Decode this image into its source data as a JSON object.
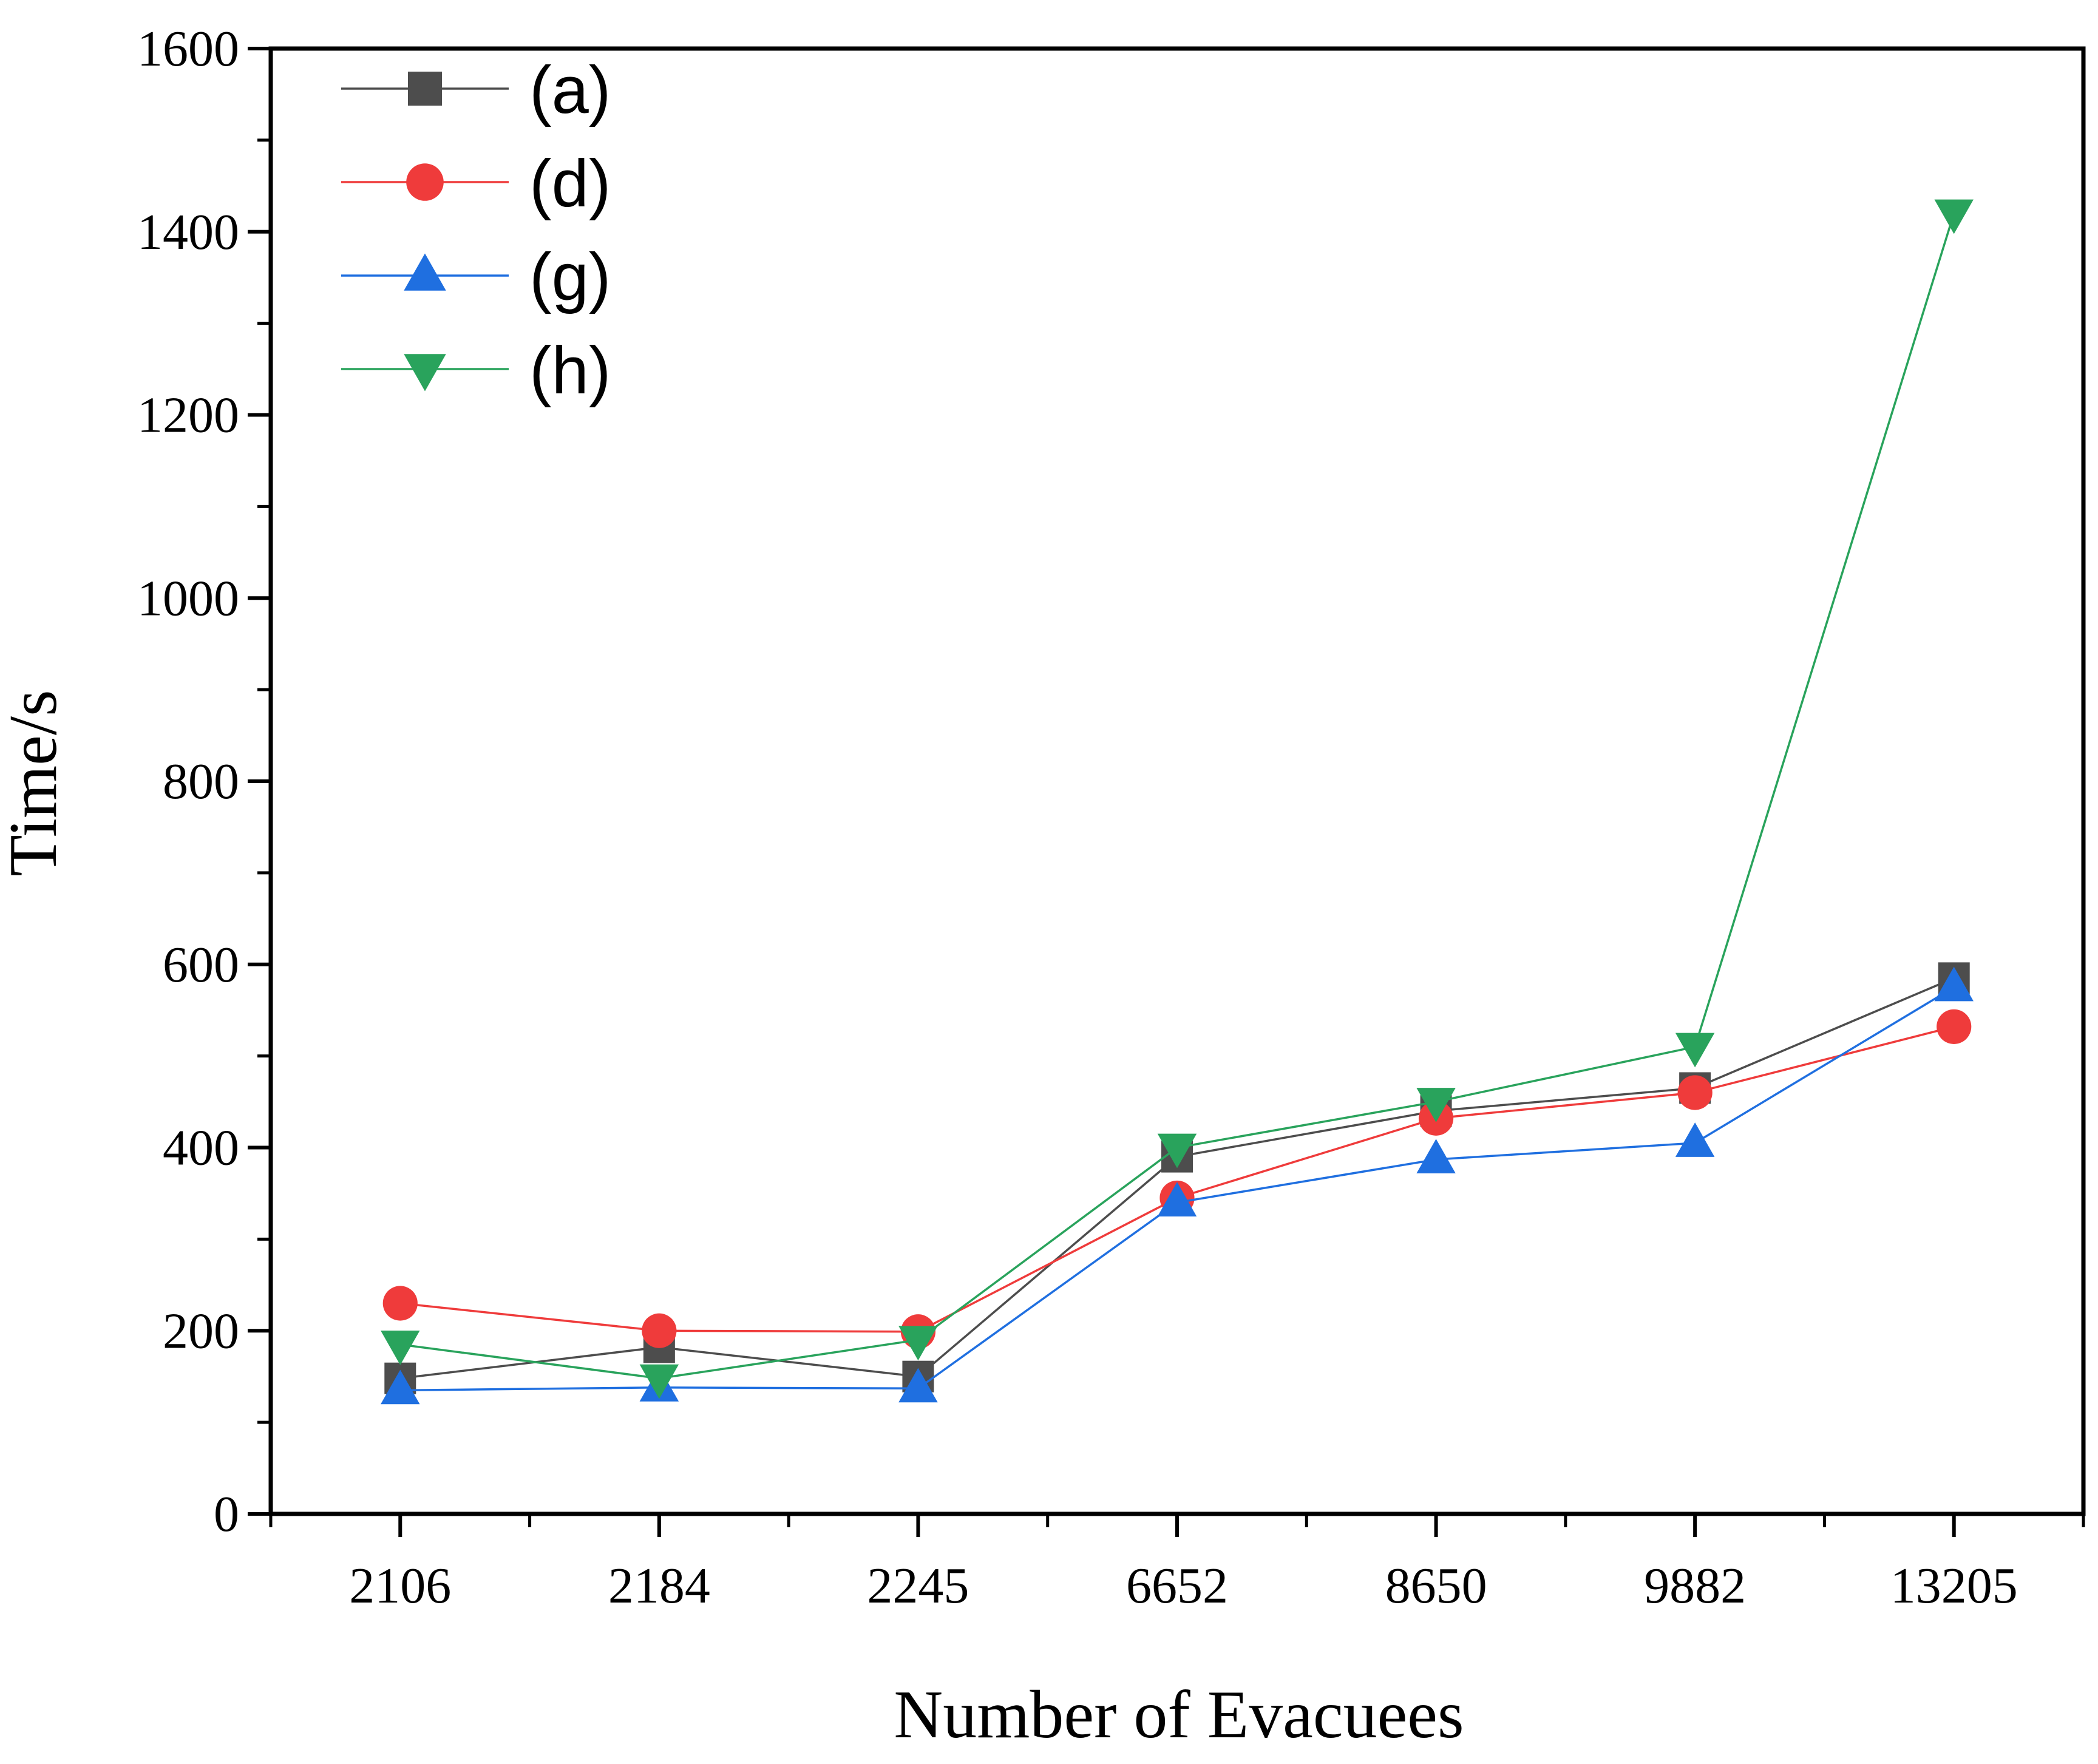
{
  "chart_data": {
    "type": "line",
    "title": "",
    "xlabel": "Number of Evacuees",
    "ylabel": "Time/s",
    "categories": [
      "2106",
      "2184",
      "2245",
      "6652",
      "8650",
      "9882",
      "13205"
    ],
    "ylim": [
      0,
      1600
    ],
    "yticks": [
      0,
      200,
      400,
      600,
      800,
      1000,
      1200,
      1400,
      1600
    ],
    "grid": false,
    "legend_position": "top-left",
    "series": [
      {
        "name": "(a)",
        "color": "#4d4d4d",
        "marker": "square",
        "values": [
          148,
          182,
          150,
          390,
          440,
          465,
          585
        ]
      },
      {
        "name": "(d)",
        "color": "#ef3b3b",
        "marker": "circle",
        "values": [
          230,
          200,
          199,
          345,
          432,
          460,
          532
        ]
      },
      {
        "name": "(g)",
        "color": "#1f6fe0",
        "marker": "triangle-up",
        "values": [
          135,
          138,
          137,
          340,
          387,
          405,
          575
        ]
      },
      {
        "name": "(h)",
        "color": "#29a35c",
        "marker": "triangle-down",
        "values": [
          185,
          148,
          190,
          400,
          450,
          510,
          1420
        ]
      }
    ]
  }
}
